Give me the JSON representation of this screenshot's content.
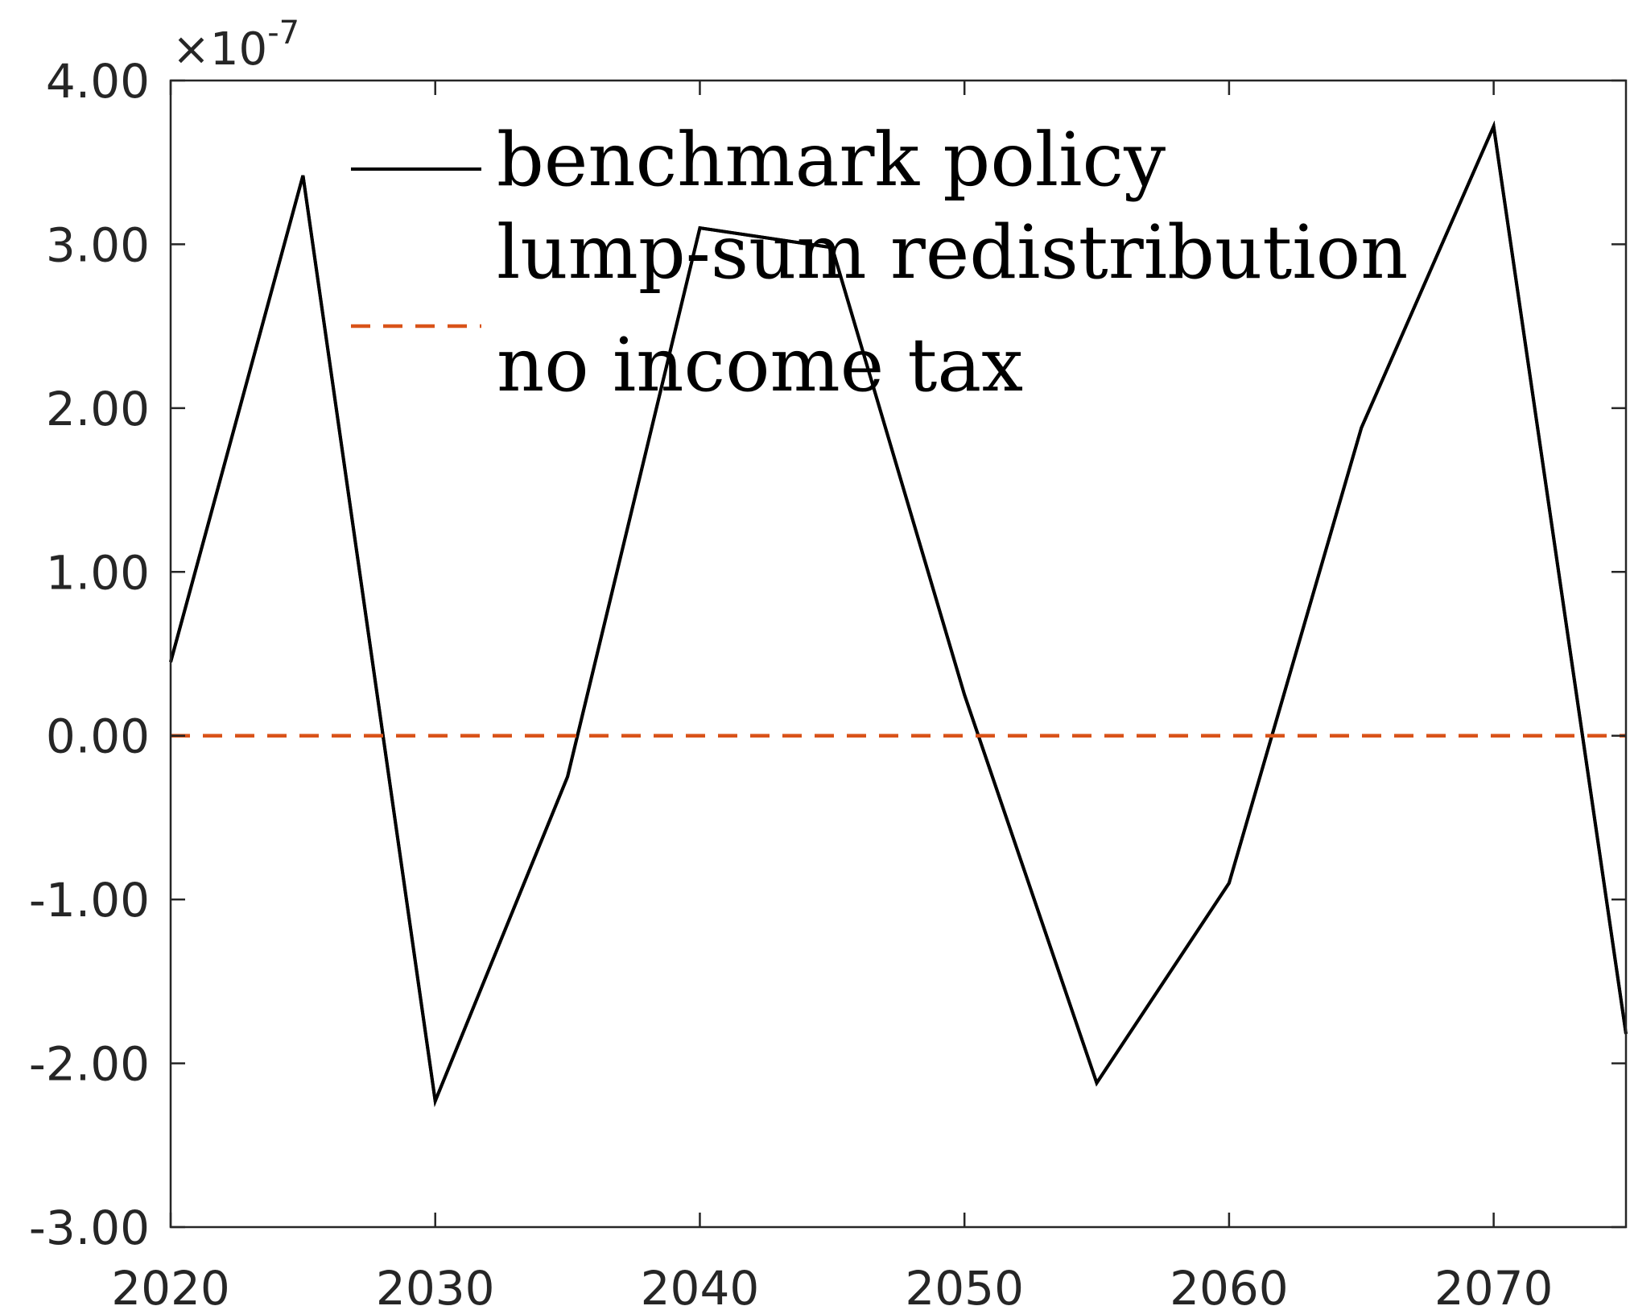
{
  "chart_data": {
    "type": "line",
    "xlim": [
      2020,
      2075
    ],
    "ylim": [
      -3.0,
      4.0
    ],
    "x_ticks": [
      2020,
      2030,
      2040,
      2050,
      2060,
      2070
    ],
    "x_tick_labels": [
      "2020",
      "2030",
      "2040",
      "2050",
      "2060",
      "2070"
    ],
    "y_ticks": [
      4,
      3,
      2,
      1,
      0,
      -1,
      -2,
      -3
    ],
    "y_tick_labels": [
      "4.00",
      "3.00",
      "2.00",
      "1.00",
      "0.00",
      "-1.00",
      "-2.00",
      "-3.00"
    ],
    "y_scale_factor": "×10",
    "y_scale_exponent": "-7",
    "x": [
      2020,
      2025,
      2030,
      2035,
      2040,
      2045,
      2050,
      2055,
      2060,
      2065,
      2070,
      2075
    ],
    "series": [
      {
        "name": "benchmark policy",
        "color": "#000000",
        "style": "solid",
        "values": [
          0.45,
          3.42,
          -2.23,
          -0.25,
          3.1,
          2.98,
          0.25,
          -2.12,
          -0.9,
          1.88,
          3.72,
          -1.82
        ]
      },
      {
        "name": "lump-sum redistribution",
        "color": "#000000",
        "style": "solid",
        "values": [
          0.45,
          3.42,
          -2.23,
          -0.25,
          3.1,
          2.98,
          0.25,
          -2.12,
          -0.9,
          1.88,
          3.72,
          -1.82
        ]
      },
      {
        "name": "no income tax",
        "color": "#D95319",
        "style": "dashed",
        "values": [
          0,
          0,
          0,
          0,
          0,
          0,
          0,
          0,
          0,
          0,
          0,
          0
        ]
      }
    ],
    "legend": {
      "position": "top-left",
      "entries": [
        "benchmark policy",
        "lump-sum redistribution",
        "no income tax"
      ]
    },
    "grid": false
  }
}
